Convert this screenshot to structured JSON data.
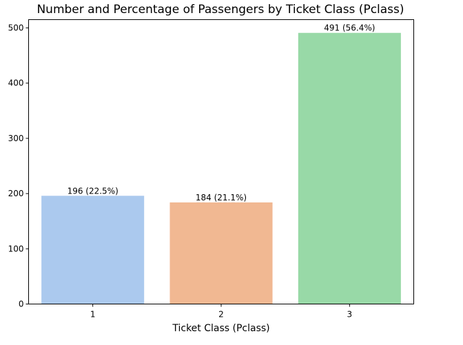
{
  "chart_data": {
    "type": "bar",
    "title": "Number and Percentage of Passengers by Ticket Class (Pclass)",
    "xlabel": "Ticket Class (Pclass)",
    "ylabel": "",
    "categories": [
      "1",
      "2",
      "3"
    ],
    "values": [
      196,
      184,
      491
    ],
    "data_labels": [
      "196 (22.5%)",
      "184 (21.1%)",
      "491 (56.4%)"
    ],
    "bar_colors": [
      "#abc9ee",
      "#f1b892",
      "#98d9a7"
    ],
    "ylim": [
      0,
      515
    ],
    "yticks": [
      0,
      100,
      200,
      300,
      400,
      500
    ],
    "grid": false
  }
}
